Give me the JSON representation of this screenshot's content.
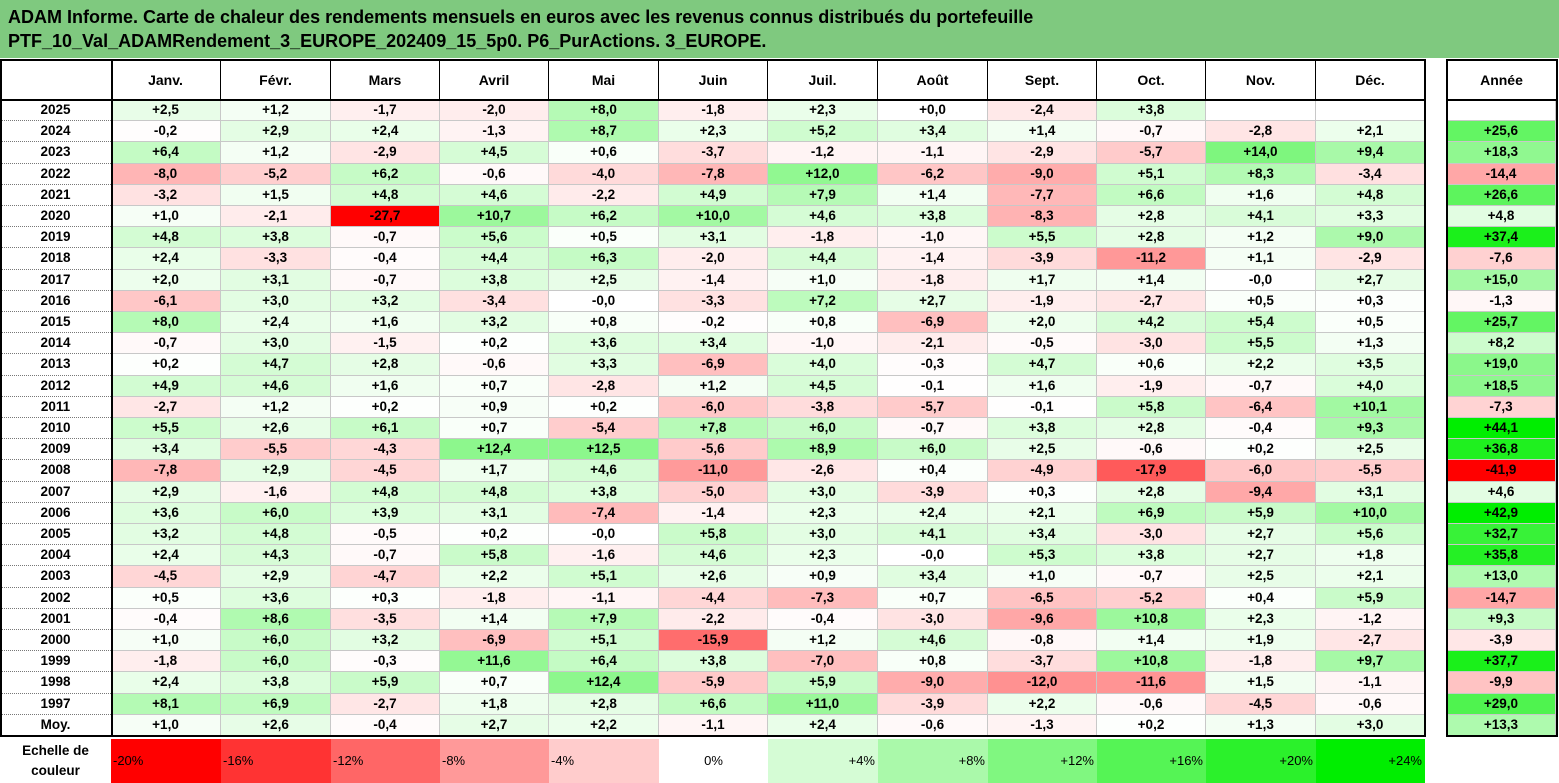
{
  "title_lines": [
    "ADAM Informe. Carte de chaleur des rendements mensuels en euros avec les revenus connus distribués du portefeuille",
    "PTF_10_Val_ADAMRendement_3_EUROPE_202409_15_5p0. P6_PurActions. 3_EUROPE."
  ],
  "chart_data": {
    "type": "heatmap",
    "columns": [
      "Janv.",
      "Févr.",
      "Mars",
      "Avril",
      "Mai",
      "Juin",
      "Juil.",
      "Août",
      "Sept.",
      "Oct.",
      "Nov.",
      "Déc."
    ],
    "year_column": "Année",
    "rows": [
      {
        "label": "2025",
        "values": [
          "+2,5",
          "+1,2",
          "-1,7",
          "-2,0",
          "+8,0",
          "-1,8",
          "+2,3",
          "+0,0",
          "-2,4",
          "+3,8",
          "",
          ""
        ],
        "year": ""
      },
      {
        "label": "2024",
        "values": [
          "-0,2",
          "+2,9",
          "+2,4",
          "-1,3",
          "+8,7",
          "+2,3",
          "+5,2",
          "+3,4",
          "+1,4",
          "-0,7",
          "-2,8",
          "+2,1"
        ],
        "year": "+25,6"
      },
      {
        "label": "2023",
        "values": [
          "+6,4",
          "+1,2",
          "-2,9",
          "+4,5",
          "+0,6",
          "-3,7",
          "-1,2",
          "-1,1",
          "-2,9",
          "-5,7",
          "+14,0",
          "+9,4"
        ],
        "year": "+18,3"
      },
      {
        "label": "2022",
        "values": [
          "-8,0",
          "-5,2",
          "+6,2",
          "-0,6",
          "-4,0",
          "-7,8",
          "+12,0",
          "-6,2",
          "-9,0",
          "+5,1",
          "+8,3",
          "-3,4"
        ],
        "year": "-14,4"
      },
      {
        "label": "2021",
        "values": [
          "-3,2",
          "+1,5",
          "+4,8",
          "+4,6",
          "-2,2",
          "+4,9",
          "+7,9",
          "+1,4",
          "-7,7",
          "+6,6",
          "+1,6",
          "+4,8"
        ],
        "year": "+26,6"
      },
      {
        "label": "2020",
        "values": [
          "+1,0",
          "-2,1",
          "-27,7",
          "+10,7",
          "+6,2",
          "+10,0",
          "+4,6",
          "+3,8",
          "-8,3",
          "+2,8",
          "+4,1",
          "+3,3"
        ],
        "year": "+4,8"
      },
      {
        "label": "2019",
        "values": [
          "+4,8",
          "+3,8",
          "-0,7",
          "+5,6",
          "+0,5",
          "+3,1",
          "-1,8",
          "-1,0",
          "+5,5",
          "+2,8",
          "+1,2",
          "+9,0"
        ],
        "year": "+37,4"
      },
      {
        "label": "2018",
        "values": [
          "+2,4",
          "-3,3",
          "-0,4",
          "+4,4",
          "+6,3",
          "-2,0",
          "+4,4",
          "-1,4",
          "-3,9",
          "-11,2",
          "+1,1",
          "-2,9"
        ],
        "year": "-7,6"
      },
      {
        "label": "2017",
        "values": [
          "+2,0",
          "+3,1",
          "-0,7",
          "+3,8",
          "+2,5",
          "-1,4",
          "+1,0",
          "-1,8",
          "+1,7",
          "+1,4",
          "-0,0",
          "+2,7"
        ],
        "year": "+15,0"
      },
      {
        "label": "2016",
        "values": [
          "-6,1",
          "+3,0",
          "+3,2",
          "-3,4",
          "-0,0",
          "-3,3",
          "+7,2",
          "+2,7",
          "-1,9",
          "-2,7",
          "+0,5",
          "+0,3"
        ],
        "year": "-1,3"
      },
      {
        "label": "2015",
        "values": [
          "+8,0",
          "+2,4",
          "+1,6",
          "+3,2",
          "+0,8",
          "-0,2",
          "+0,8",
          "-6,9",
          "+2,0",
          "+4,2",
          "+5,4",
          "+0,5"
        ],
        "year": "+25,7"
      },
      {
        "label": "2014",
        "values": [
          "-0,7",
          "+3,0",
          "-1,5",
          "+0,2",
          "+3,6",
          "+3,4",
          "-1,0",
          "-2,1",
          "-0,5",
          "-3,0",
          "+5,5",
          "+1,3"
        ],
        "year": "+8,2"
      },
      {
        "label": "2013",
        "values": [
          "+0,2",
          "+4,7",
          "+2,8",
          "-0,6",
          "+3,3",
          "-6,9",
          "+4,0",
          "-0,3",
          "+4,7",
          "+0,6",
          "+2,2",
          "+3,5"
        ],
        "year": "+19,0"
      },
      {
        "label": "2012",
        "values": [
          "+4,9",
          "+4,6",
          "+1,6",
          "+0,7",
          "-2,8",
          "+1,2",
          "+4,5",
          "-0,1",
          "+1,6",
          "-1,9",
          "-0,7",
          "+4,0"
        ],
        "year": "+18,5"
      },
      {
        "label": "2011",
        "values": [
          "-2,7",
          "+1,2",
          "+0,2",
          "+0,9",
          "+0,2",
          "-6,0",
          "-3,8",
          "-5,7",
          "-0,1",
          "+5,8",
          "-6,4",
          "+10,1"
        ],
        "year": "-7,3"
      },
      {
        "label": "2010",
        "values": [
          "+5,5",
          "+2,6",
          "+6,1",
          "+0,7",
          "-5,4",
          "+7,8",
          "+6,0",
          "-0,7",
          "+3,8",
          "+2,8",
          "-0,4",
          "+9,3"
        ],
        "year": "+44,1"
      },
      {
        "label": "2009",
        "values": [
          "+3,4",
          "-5,5",
          "-4,3",
          "+12,4",
          "+12,5",
          "-5,6",
          "+8,9",
          "+6,0",
          "+2,5",
          "-0,6",
          "+0,2",
          "+2,5"
        ],
        "year": "+36,8"
      },
      {
        "label": "2008",
        "values": [
          "-7,8",
          "+2,9",
          "-4,5",
          "+1,7",
          "+4,6",
          "-11,0",
          "-2,6",
          "+0,4",
          "-4,9",
          "-17,9",
          "-6,0",
          "-5,5"
        ],
        "year": "-41,9"
      },
      {
        "label": "2007",
        "values": [
          "+2,9",
          "-1,6",
          "+4,8",
          "+4,8",
          "+3,8",
          "-5,0",
          "+3,0",
          "-3,9",
          "+0,3",
          "+2,8",
          "-9,4",
          "+3,1"
        ],
        "year": "+4,6"
      },
      {
        "label": "2006",
        "values": [
          "+3,6",
          "+6,0",
          "+3,9",
          "+3,1",
          "-7,4",
          "-1,4",
          "+2,3",
          "+2,4",
          "+2,1",
          "+6,9",
          "+5,9",
          "+10,0"
        ],
        "year": "+42,9"
      },
      {
        "label": "2005",
        "values": [
          "+3,2",
          "+4,8",
          "-0,5",
          "+0,2",
          "-0,0",
          "+5,8",
          "+3,0",
          "+4,1",
          "+3,4",
          "-3,0",
          "+2,7",
          "+5,6"
        ],
        "year": "+32,7"
      },
      {
        "label": "2004",
        "values": [
          "+2,4",
          "+4,3",
          "-0,7",
          "+5,8",
          "-1,6",
          "+4,6",
          "+2,3",
          "-0,0",
          "+5,3",
          "+3,8",
          "+2,7",
          "+1,8"
        ],
        "year": "+35,8"
      },
      {
        "label": "2003",
        "values": [
          "-4,5",
          "+2,9",
          "-4,7",
          "+2,2",
          "+5,1",
          "+2,6",
          "+0,9",
          "+3,4",
          "+1,0",
          "-0,7",
          "+2,5",
          "+2,1"
        ],
        "year": "+13,0"
      },
      {
        "label": "2002",
        "values": [
          "+0,5",
          "+3,6",
          "+0,3",
          "-1,8",
          "-1,1",
          "-4,4",
          "-7,3",
          "+0,7",
          "-6,5",
          "-5,2",
          "+0,4",
          "+5,9"
        ],
        "year": "-14,7"
      },
      {
        "label": "2001",
        "values": [
          "-0,4",
          "+8,6",
          "-3,5",
          "+1,4",
          "+7,9",
          "-2,2",
          "-0,4",
          "-3,0",
          "-9,6",
          "+10,8",
          "+2,3",
          "-1,2"
        ],
        "year": "+9,3"
      },
      {
        "label": "2000",
        "values": [
          "+1,0",
          "+6,0",
          "+3,2",
          "-6,9",
          "+5,1",
          "-15,9",
          "+1,2",
          "+4,6",
          "-0,8",
          "+1,4",
          "+1,9",
          "-2,7"
        ],
        "year": "-3,9"
      },
      {
        "label": "1999",
        "values": [
          "-1,8",
          "+6,0",
          "-0,3",
          "+11,6",
          "+6,4",
          "+3,8",
          "-7,0",
          "+0,8",
          "-3,7",
          "+10,8",
          "-1,8",
          "+9,7"
        ],
        "year": "+37,7"
      },
      {
        "label": "1998",
        "values": [
          "+2,4",
          "+3,8",
          "+5,9",
          "+0,7",
          "+12,4",
          "-5,9",
          "+5,9",
          "-9,0",
          "-12,0",
          "-11,6",
          "+1,5",
          "-1,1"
        ],
        "year": "-9,9"
      },
      {
        "label": "1997",
        "values": [
          "+8,1",
          "+6,9",
          "-2,7",
          "+1,8",
          "+2,8",
          "+6,6",
          "+11,0",
          "-3,9",
          "+2,2",
          "-0,6",
          "-4,5",
          "-0,6"
        ],
        "year": "+29,0"
      }
    ],
    "average_row": {
      "label": "Moy.",
      "values": [
        "+1,0",
        "+2,6",
        "-0,4",
        "+2,7",
        "+2,2",
        "-1,1",
        "+2,4",
        "-0,6",
        "-1,3",
        "+0,2",
        "+1,3",
        "+3,0"
      ],
      "year": "+13,3"
    },
    "legend": {
      "title_lines": [
        "Echelle de",
        "couleur"
      ],
      "stops": [
        "-20%",
        "-16%",
        "-12%",
        "-8%",
        "-4%",
        "0%",
        "+4%",
        "+8%",
        "+12%",
        "+16%",
        "+20%",
        "+24%"
      ],
      "stop_values": [
        -20,
        -16,
        -12,
        -8,
        -4,
        0,
        4,
        8,
        12,
        16,
        20,
        24
      ]
    },
    "color_scale": {
      "negative_max": "#ff0000",
      "neutral": "#ffffff",
      "positive_max": "#00ee00"
    }
  }
}
